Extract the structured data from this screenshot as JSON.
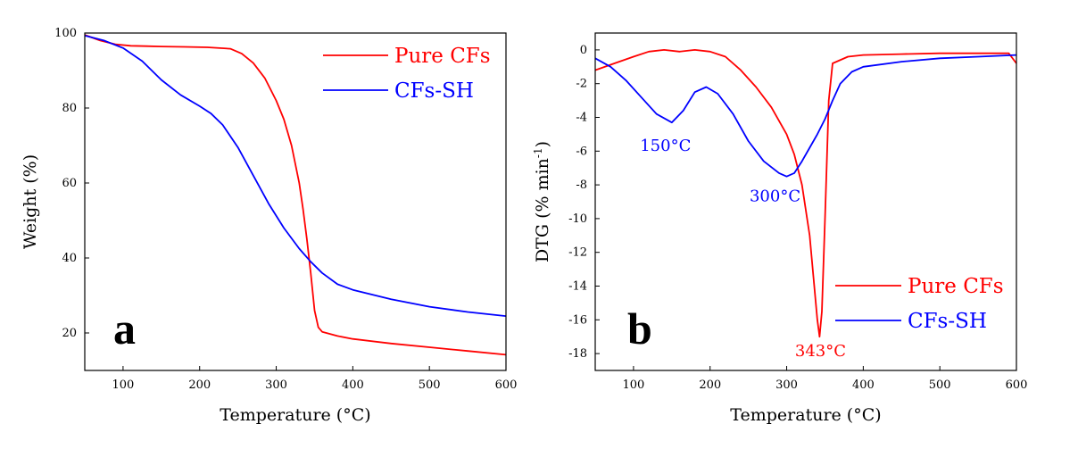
{
  "colors": {
    "pure_cfs": "#ff0000",
    "cfs_sh": "#0000ff",
    "axis": "#000000"
  },
  "chart_data": [
    {
      "type": "line",
      "panel_label": "a",
      "title": "",
      "xlabel": "Temperature (°C)",
      "ylabel": "Weight (%)",
      "xlim": [
        50,
        600
      ],
      "ylim": [
        10,
        100
      ],
      "xticks": [
        100,
        200,
        300,
        400,
        500,
        600
      ],
      "yticks": [
        20,
        40,
        60,
        80,
        100
      ],
      "legend_position": "top-right",
      "annotations": [],
      "series": [
        {
          "name": "Pure CFs",
          "color": "#ff0000",
          "x": [
            50,
            70,
            90,
            110,
            130,
            150,
            180,
            210,
            240,
            255,
            270,
            285,
            300,
            310,
            320,
            330,
            335,
            340,
            345,
            350,
            355,
            360,
            380,
            400,
            450,
            500,
            550,
            600
          ],
          "y": [
            99.5,
            98.0,
            97.0,
            96.6,
            96.5,
            96.4,
            96.3,
            96.2,
            95.8,
            94.5,
            92.0,
            88.0,
            82.0,
            77.0,
            70.0,
            60.0,
            53.0,
            45.0,
            36.0,
            26.0,
            21.5,
            20.3,
            19.2,
            18.4,
            17.2,
            16.2,
            15.2,
            14.2
          ]
        },
        {
          "name": "CFs-SH",
          "color": "#0000ff",
          "x": [
            50,
            75,
            100,
            125,
            150,
            175,
            200,
            215,
            230,
            250,
            270,
            290,
            310,
            330,
            345,
            360,
            380,
            400,
            450,
            500,
            550,
            600
          ],
          "y": [
            99.3,
            98.0,
            96.0,
            92.5,
            87.5,
            83.5,
            80.5,
            78.5,
            75.5,
            69.5,
            62.0,
            54.5,
            48.0,
            42.5,
            39.0,
            36.0,
            33.0,
            31.5,
            29.0,
            27.0,
            25.6,
            24.5
          ]
        }
      ]
    },
    {
      "type": "line",
      "panel_label": "b",
      "title": "",
      "xlabel": "Temperature (°C)",
      "ylabel": "DTG (% min",
      "ylabel_sup": "-1",
      "ylabel_close": ")",
      "xlim": [
        50,
        600
      ],
      "ylim": [
        -19,
        1
      ],
      "xticks": [
        100,
        200,
        300,
        400,
        500,
        600
      ],
      "yticks": [
        0,
        -2,
        -4,
        -6,
        -8,
        -10,
        -12,
        -14,
        -16,
        -18
      ],
      "legend_position": "bottom-right",
      "annotations": [
        {
          "text": "150°C",
          "x": 150,
          "y": -4.3,
          "series": "CFs-SH"
        },
        {
          "text": "300°C",
          "x": 300,
          "y": -7.5,
          "series": "CFs-SH"
        },
        {
          "text": "343°C",
          "x": 343,
          "y": -17.0,
          "series": "Pure CFs"
        }
      ],
      "series": [
        {
          "name": "Pure CFs",
          "color": "#ff0000",
          "x": [
            50,
            75,
            100,
            120,
            140,
            160,
            180,
            200,
            220,
            240,
            260,
            280,
            300,
            310,
            320,
            330,
            335,
            340,
            343,
            346,
            350,
            355,
            360,
            380,
            400,
            450,
            500,
            550,
            590,
            600
          ],
          "y": [
            -1.2,
            -0.8,
            -0.4,
            -0.1,
            0.0,
            -0.1,
            0.0,
            -0.1,
            -0.4,
            -1.2,
            -2.2,
            -3.4,
            -5.0,
            -6.2,
            -8.0,
            -11.0,
            -13.5,
            -16.0,
            -17.0,
            -15.5,
            -10.0,
            -3.0,
            -0.8,
            -0.4,
            -0.3,
            -0.25,
            -0.2,
            -0.2,
            -0.2,
            -0.8
          ]
        },
        {
          "name": "CFs-SH",
          "color": "#0000ff",
          "x": [
            50,
            70,
            90,
            110,
            130,
            150,
            165,
            180,
            195,
            210,
            230,
            250,
            270,
            290,
            300,
            310,
            320,
            330,
            340,
            350,
            360,
            370,
            385,
            400,
            450,
            500,
            550,
            600
          ],
          "y": [
            -0.5,
            -1.0,
            -1.8,
            -2.8,
            -3.8,
            -4.3,
            -3.6,
            -2.5,
            -2.2,
            -2.6,
            -3.8,
            -5.4,
            -6.6,
            -7.3,
            -7.5,
            -7.3,
            -6.6,
            -5.8,
            -5.0,
            -4.1,
            -3.0,
            -2.0,
            -1.3,
            -1.0,
            -0.7,
            -0.5,
            -0.4,
            -0.3
          ]
        }
      ]
    }
  ]
}
